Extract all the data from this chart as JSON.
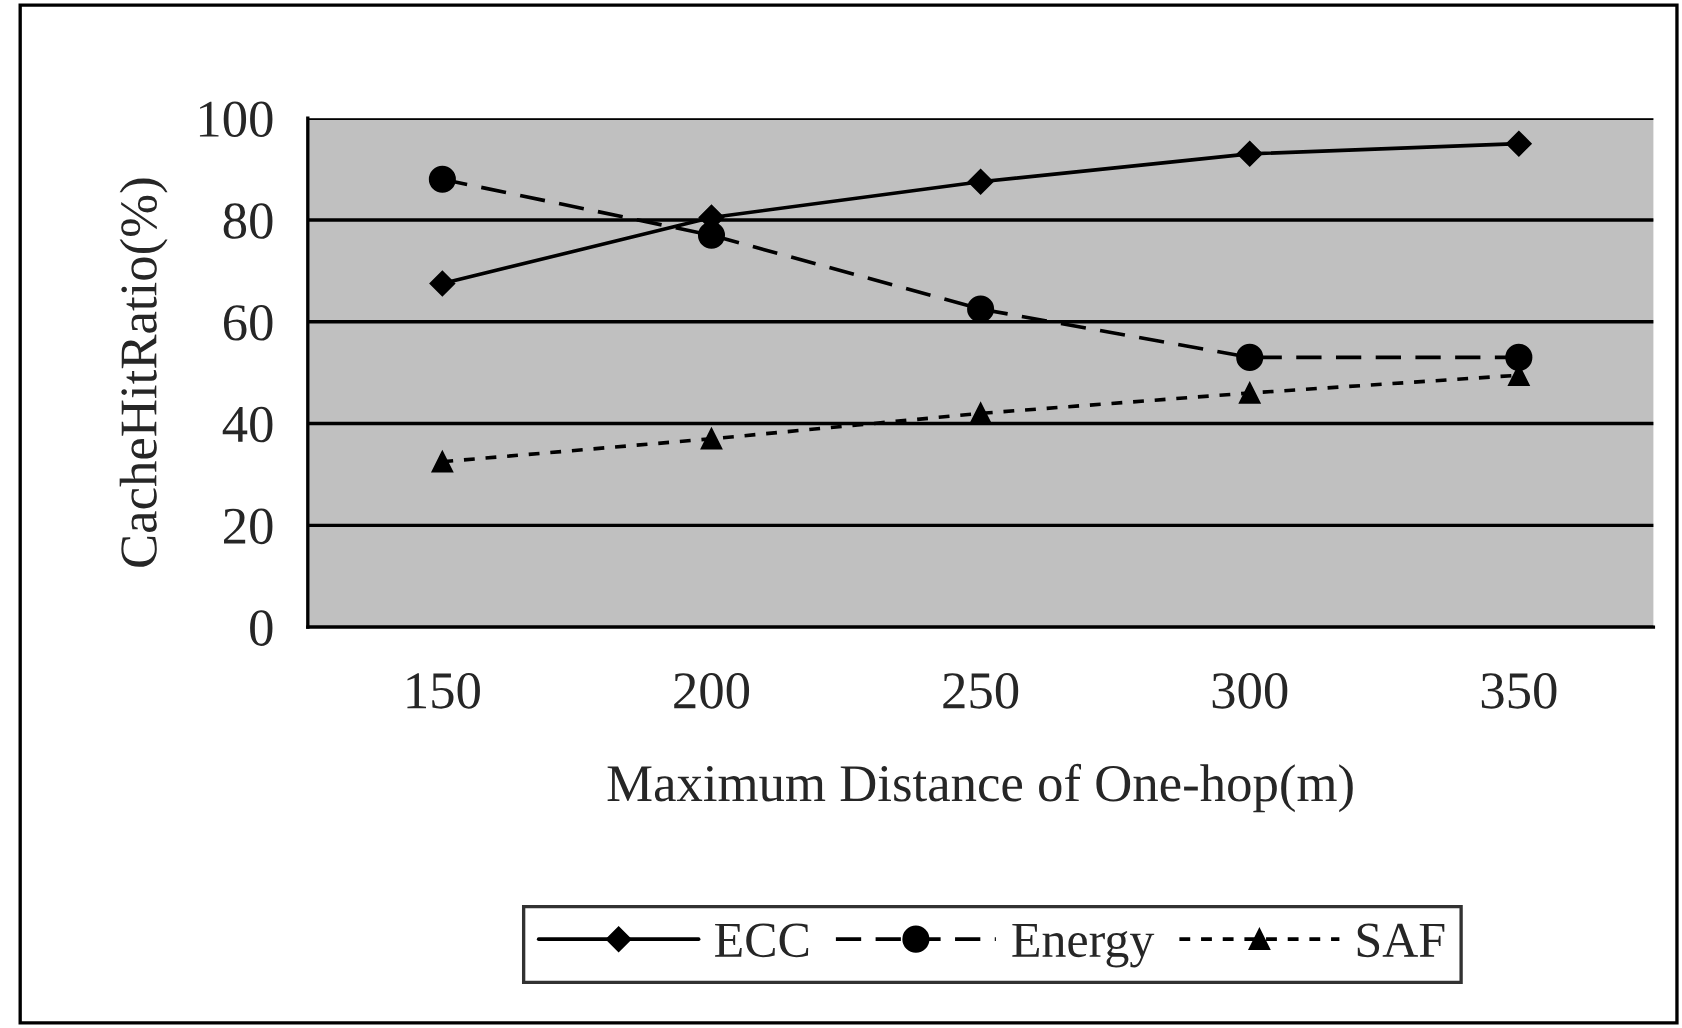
{
  "chart_data": {
    "type": "line",
    "xlabel": "Maximum Distance of One-hop(m)",
    "ylabel": "CacheHitRatio(%)",
    "categories": [
      "150",
      "200",
      "250",
      "300",
      "350"
    ],
    "series": [
      {
        "name": "ECC",
        "color": "#000000",
        "marker": "diamond",
        "line_style": "solid",
        "values": [
          67.5,
          80.5,
          87.5,
          93,
          95
        ]
      },
      {
        "name": "Energy",
        "color": "#000000",
        "marker": "circle",
        "line_style": "dashed",
        "values": [
          88,
          77,
          62.5,
          53,
          53
        ]
      },
      {
        "name": "SAF",
        "color": "#000000",
        "marker": "triangle",
        "line_style": "dotted",
        "values": [
          32.5,
          37,
          42,
          46,
          49.5
        ]
      }
    ],
    "ylim": [
      0,
      100
    ],
    "yticks": [
      0,
      20,
      40,
      60,
      80,
      100
    ],
    "grid": "y",
    "legend": "bottom"
  }
}
